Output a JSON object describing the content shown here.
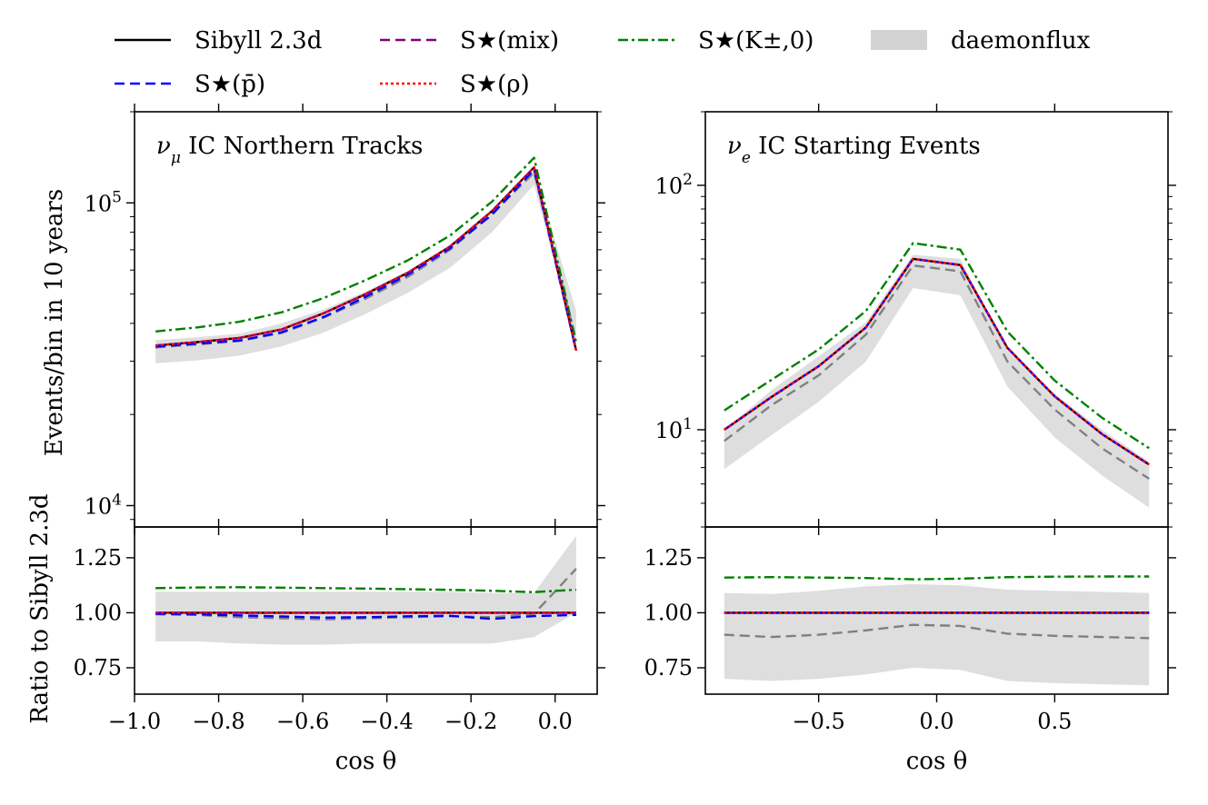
{
  "legend": {
    "entries": [
      {
        "key": "sibyll",
        "label": "Sibyll 2.3d",
        "color": "#000000",
        "style": "solid"
      },
      {
        "key": "mix",
        "label": "S★(mix)",
        "color": "#800080",
        "style": "dashed"
      },
      {
        "key": "kaon",
        "label": "S★(K±,0)",
        "color": "#008000",
        "style": "dashdot"
      },
      {
        "key": "daemonflux",
        "label": "daemonflux",
        "color": "#d3d3d3",
        "style": "band"
      },
      {
        "key": "pbar",
        "label": "S★(p̄)",
        "color": "#0000ff",
        "style": "dashed"
      },
      {
        "key": "rho",
        "label": "S★(ρ)",
        "color": "#ff0000",
        "style": "dotted"
      }
    ],
    "placement": "top, above panels"
  },
  "chart_data": [
    {
      "type": "line",
      "panel": "left-top",
      "title": "ν_μ IC Northern Tracks",
      "title_symbol": "ν",
      "title_sub": "μ",
      "title_rest": " IC Northern Tracks",
      "ylabel": "Events/bin in 10 years",
      "yscale": "log",
      "ylim": [
        8500,
        200000
      ],
      "yticks": [
        {
          "value": 10000,
          "base": "10",
          "exp": "4"
        },
        {
          "value": 100000,
          "base": "10",
          "exp": "5"
        }
      ],
      "xlim": [
        -1.0,
        0.1
      ],
      "x": [
        -0.95,
        -0.85,
        -0.75,
        -0.65,
        -0.55,
        -0.45,
        -0.35,
        -0.25,
        -0.15,
        -0.05,
        0.05
      ],
      "series": [
        {
          "key": "band_upper",
          "values": [
            35200,
            36000,
            37000,
            40000,
            44500,
            51000,
            59500,
            72000,
            92000,
            128000,
            44000
          ]
        },
        {
          "key": "band_lower",
          "values": [
            29500,
            30200,
            31300,
            33600,
            37300,
            43000,
            50500,
            61000,
            80000,
            115000,
            33500
          ]
        },
        {
          "key": "gray",
          "values": [
            33300,
            34100,
            35000,
            37200,
            41800,
            48300,
            57000,
            70000,
            92000,
            126000,
            35000
          ]
        },
        {
          "key": "kaon",
          "values": [
            37600,
            38800,
            40500,
            43500,
            48500,
            55600,
            64600,
            78000,
            101000,
            141000,
            34500
          ]
        },
        {
          "key": "sibyll",
          "values": [
            33800,
            34700,
            35800,
            38200,
            43200,
            50000,
            58800,
            71700,
            94000,
            131000,
            32500
          ]
        },
        {
          "key": "mix",
          "values": [
            33800,
            34700,
            35800,
            38200,
            43200,
            50000,
            58800,
            71700,
            94000,
            131000,
            32500
          ]
        },
        {
          "key": "pbar",
          "values": [
            33500,
            34300,
            35100,
            37400,
            42000,
            49000,
            58000,
            70800,
            91500,
            129000,
            32400
          ]
        },
        {
          "key": "rho",
          "values": [
            33800,
            34700,
            35800,
            38200,
            43200,
            50000,
            58800,
            71700,
            94000,
            131000,
            32500
          ]
        }
      ]
    },
    {
      "type": "line",
      "panel": "right-top",
      "title": "ν_e IC Starting Events",
      "title_symbol": "ν",
      "title_sub": "e",
      "title_rest": " IC Starting Events",
      "yscale": "log",
      "ylim": [
        4,
        200
      ],
      "yticks": [
        {
          "value": 10,
          "base": "10",
          "exp": "1"
        },
        {
          "value": 100,
          "base": "10",
          "exp": "2"
        }
      ],
      "xlim": [
        -0.98,
        0.98
      ],
      "xticks": [
        {
          "value": -0.5,
          "label": "−0.5"
        },
        {
          "value": 0.0,
          "label": "0.0"
        },
        {
          "value": 0.5,
          "label": "0.5"
        }
      ],
      "x": [
        -0.9,
        -0.7,
        -0.5,
        -0.3,
        -0.1,
        0.1,
        0.3,
        0.5,
        0.7,
        0.9
      ],
      "series": [
        {
          "key": "band_upper",
          "values": [
            10.0,
            14.5,
            20.0,
            27.5,
            52.0,
            50.0,
            21.0,
            14.0,
            10.0,
            7.4
          ]
        },
        {
          "key": "band_lower",
          "values": [
            6.9,
            9.5,
            13.0,
            19.0,
            38.0,
            35.5,
            15.0,
            9.3,
            6.5,
            4.8
          ]
        },
        {
          "key": "gray",
          "values": [
            9.0,
            12.6,
            16.7,
            24.5,
            47.0,
            44.5,
            19.0,
            12.1,
            8.4,
            6.3
          ]
        },
        {
          "key": "kaon",
          "values": [
            12.0,
            16.0,
            21.3,
            30.6,
            58.0,
            54.6,
            25.2,
            15.9,
            11.2,
            8.4
          ]
        },
        {
          "key": "sibyll",
          "values": [
            10.0,
            13.6,
            18.2,
            26.2,
            50.0,
            47.2,
            21.6,
            13.7,
            9.6,
            7.2
          ]
        },
        {
          "key": "mix",
          "values": [
            10.0,
            13.6,
            18.2,
            26.2,
            50.0,
            47.2,
            21.6,
            13.7,
            9.6,
            7.2
          ]
        },
        {
          "key": "pbar",
          "values": [
            10.0,
            13.6,
            18.2,
            26.2,
            50.0,
            47.2,
            21.6,
            13.7,
            9.6,
            7.2
          ]
        },
        {
          "key": "rho",
          "values": [
            10.0,
            13.6,
            18.2,
            26.2,
            50.0,
            47.2,
            21.6,
            13.7,
            9.6,
            7.2
          ]
        }
      ]
    },
    {
      "type": "line",
      "panel": "left-bottom",
      "ylabel": "Ratio to Sibyll 2.3d",
      "xlabel": "cos θ",
      "yscale": "linear",
      "ylim": [
        0.63,
        1.39
      ],
      "yticks": [
        {
          "value": 0.75,
          "label": "0.75"
        },
        {
          "value": 1.0,
          "label": "1.00"
        },
        {
          "value": 1.25,
          "label": "1.25"
        }
      ],
      "xlim": [
        -1.0,
        0.1
      ],
      "xticks": [
        {
          "value": -1.0,
          "label": "−1.0"
        },
        {
          "value": -0.8,
          "label": "−0.8"
        },
        {
          "value": -0.6,
          "label": "−0.6"
        },
        {
          "value": -0.4,
          "label": "−0.4"
        },
        {
          "value": -0.2,
          "label": "−0.2"
        },
        {
          "value": 0.0,
          "label": "0.0"
        }
      ],
      "x": [
        -0.95,
        -0.85,
        -0.75,
        -0.65,
        -0.55,
        -0.45,
        -0.35,
        -0.25,
        -0.15,
        -0.05,
        0.05
      ],
      "series": [
        {
          "key": "band_upper",
          "values": [
            1.095,
            1.095,
            1.095,
            1.095,
            1.095,
            1.095,
            1.095,
            1.095,
            1.09,
            1.09,
            1.35
          ]
        },
        {
          "key": "band_lower",
          "values": [
            0.87,
            0.87,
            0.86,
            0.855,
            0.855,
            0.86,
            0.86,
            0.86,
            0.86,
            0.89,
            1.0
          ]
        },
        {
          "key": "gray",
          "values": [
            0.993,
            0.99,
            0.98,
            0.975,
            0.97,
            0.975,
            0.98,
            0.985,
            0.98,
            0.995,
            1.2
          ]
        },
        {
          "key": "kaon",
          "values": [
            1.112,
            1.115,
            1.116,
            1.114,
            1.112,
            1.11,
            1.107,
            1.104,
            1.1,
            1.094,
            1.105
          ]
        },
        {
          "key": "sibyll",
          "values": [
            1.0,
            1.0,
            1.0,
            1.0,
            1.0,
            1.0,
            1.0,
            1.0,
            1.0,
            1.0,
            1.0
          ]
        },
        {
          "key": "mix",
          "values": [
            1.0,
            1.0,
            1.0,
            1.0,
            1.0,
            1.0,
            1.0,
            1.0,
            1.0,
            1.0,
            1.0
          ]
        },
        {
          "key": "pbar",
          "values": [
            0.995,
            0.993,
            0.988,
            0.983,
            0.978,
            0.98,
            0.984,
            0.986,
            0.972,
            0.985,
            0.99
          ]
        },
        {
          "key": "rho",
          "values": [
            1.0,
            1.0,
            1.0,
            1.0,
            1.0,
            1.0,
            1.0,
            1.0,
            1.0,
            1.0,
            1.0
          ]
        }
      ]
    },
    {
      "type": "line",
      "panel": "right-bottom",
      "xlabel": "cos θ",
      "yscale": "linear",
      "ylim": [
        0.63,
        1.39
      ],
      "yticks": [
        {
          "value": 0.75,
          "label": "0.75"
        },
        {
          "value": 1.0,
          "label": "1.00"
        },
        {
          "value": 1.25,
          "label": "1.25"
        }
      ],
      "xlim": [
        -0.98,
        0.98
      ],
      "xticks": [
        {
          "value": -0.5,
          "label": "−0.5"
        },
        {
          "value": 0.0,
          "label": "0.0"
        },
        {
          "value": 0.5,
          "label": "0.5"
        }
      ],
      "x": [
        -0.9,
        -0.7,
        -0.5,
        -0.3,
        -0.1,
        0.1,
        0.3,
        0.5,
        0.7,
        0.9
      ],
      "series": [
        {
          "key": "band_upper",
          "values": [
            1.09,
            1.085,
            1.1,
            1.12,
            1.13,
            1.125,
            1.105,
            1.1,
            1.095,
            1.09
          ]
        },
        {
          "key": "band_lower",
          "values": [
            0.7,
            0.69,
            0.7,
            0.72,
            0.75,
            0.74,
            0.69,
            0.68,
            0.675,
            0.67
          ]
        },
        {
          "key": "gray",
          "values": [
            0.9,
            0.89,
            0.9,
            0.92,
            0.945,
            0.94,
            0.905,
            0.895,
            0.89,
            0.885
          ]
        },
        {
          "key": "kaon",
          "values": [
            1.16,
            1.162,
            1.16,
            1.158,
            1.152,
            1.155,
            1.162,
            1.164,
            1.165,
            1.165
          ]
        },
        {
          "key": "sibyll",
          "values": [
            1.0,
            1.0,
            1.0,
            1.0,
            1.0,
            1.0,
            1.0,
            1.0,
            1.0,
            1.0
          ]
        },
        {
          "key": "mix",
          "values": [
            1.0,
            1.0,
            1.0,
            1.0,
            1.0,
            1.0,
            1.0,
            1.0,
            1.0,
            1.0
          ]
        },
        {
          "key": "pbar",
          "values": [
            1.0,
            1.0,
            1.0,
            1.0,
            1.0,
            1.0,
            1.0,
            1.0,
            1.0,
            1.0
          ]
        },
        {
          "key": "rho",
          "values": [
            1.0,
            1.0,
            1.0,
            1.0,
            1.0,
            1.0,
            1.0,
            1.0,
            1.0,
            1.0
          ]
        }
      ]
    }
  ]
}
